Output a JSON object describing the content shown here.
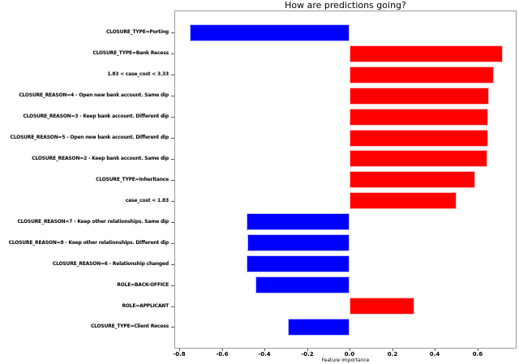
{
  "figure": {
    "title": "How are predictions going?",
    "xlabel": "Feature importance"
  },
  "colors": {
    "positive": "#ff0000",
    "negative": "#0000ff",
    "spine": "#9a9a9a",
    "tick": "#555555",
    "text": "#000000",
    "background": "#ffffff"
  },
  "chart_data": {
    "type": "bar",
    "orientation": "horizontal",
    "title": "How are predictions going?",
    "xlabel": "Feature importance",
    "ylabel": "",
    "grid": false,
    "legend": null,
    "xlim": [
      -0.82,
      0.79
    ],
    "xticks": [
      -0.8,
      -0.6,
      -0.4,
      -0.2,
      0.0,
      0.2,
      0.4,
      0.6
    ],
    "xtick_labels": [
      "-0.8",
      "-0.6",
      "-0.4",
      "-0.2",
      "0.0",
      "0.2",
      "0.4",
      "0.6"
    ],
    "categories": [
      "CLOSURE_TYPE=Porting",
      "CLOSURE_TYPE=Bank Recess",
      "1.83 < case_cost < 3.33",
      "CLOSURE_REASON=4 - Open new bank account. Same dip",
      "CLOSURE_REASON=3 - Keep bank account. Different dip",
      "CLOSURE_REASON=5 - Open new bank account. Different dip",
      "CLOSURE_REASON=2 - Keep bank account. Same dip",
      "CLOSURE_TYPE=Inheritance",
      "case_cost < 1.83",
      "CLOSURE_REASON=7 - Keep other relationships. Same dip",
      "CLOSURE_REASON=8 - Keep other relationships. Different dip",
      "CLOSURE_REASON=6 - Relationship changed",
      "ROLE=BACK-OFFICE",
      "ROLE=APPLICANT",
      "CLOSURE_TYPE=Client Recess"
    ],
    "values": [
      -0.75,
      0.72,
      0.678,
      0.656,
      0.653,
      0.65,
      0.646,
      0.59,
      0.503,
      -0.484,
      -0.48,
      -0.483,
      -0.44,
      0.305,
      -0.29
    ],
    "bar_color_rule": "positive values red, negative values blue"
  }
}
